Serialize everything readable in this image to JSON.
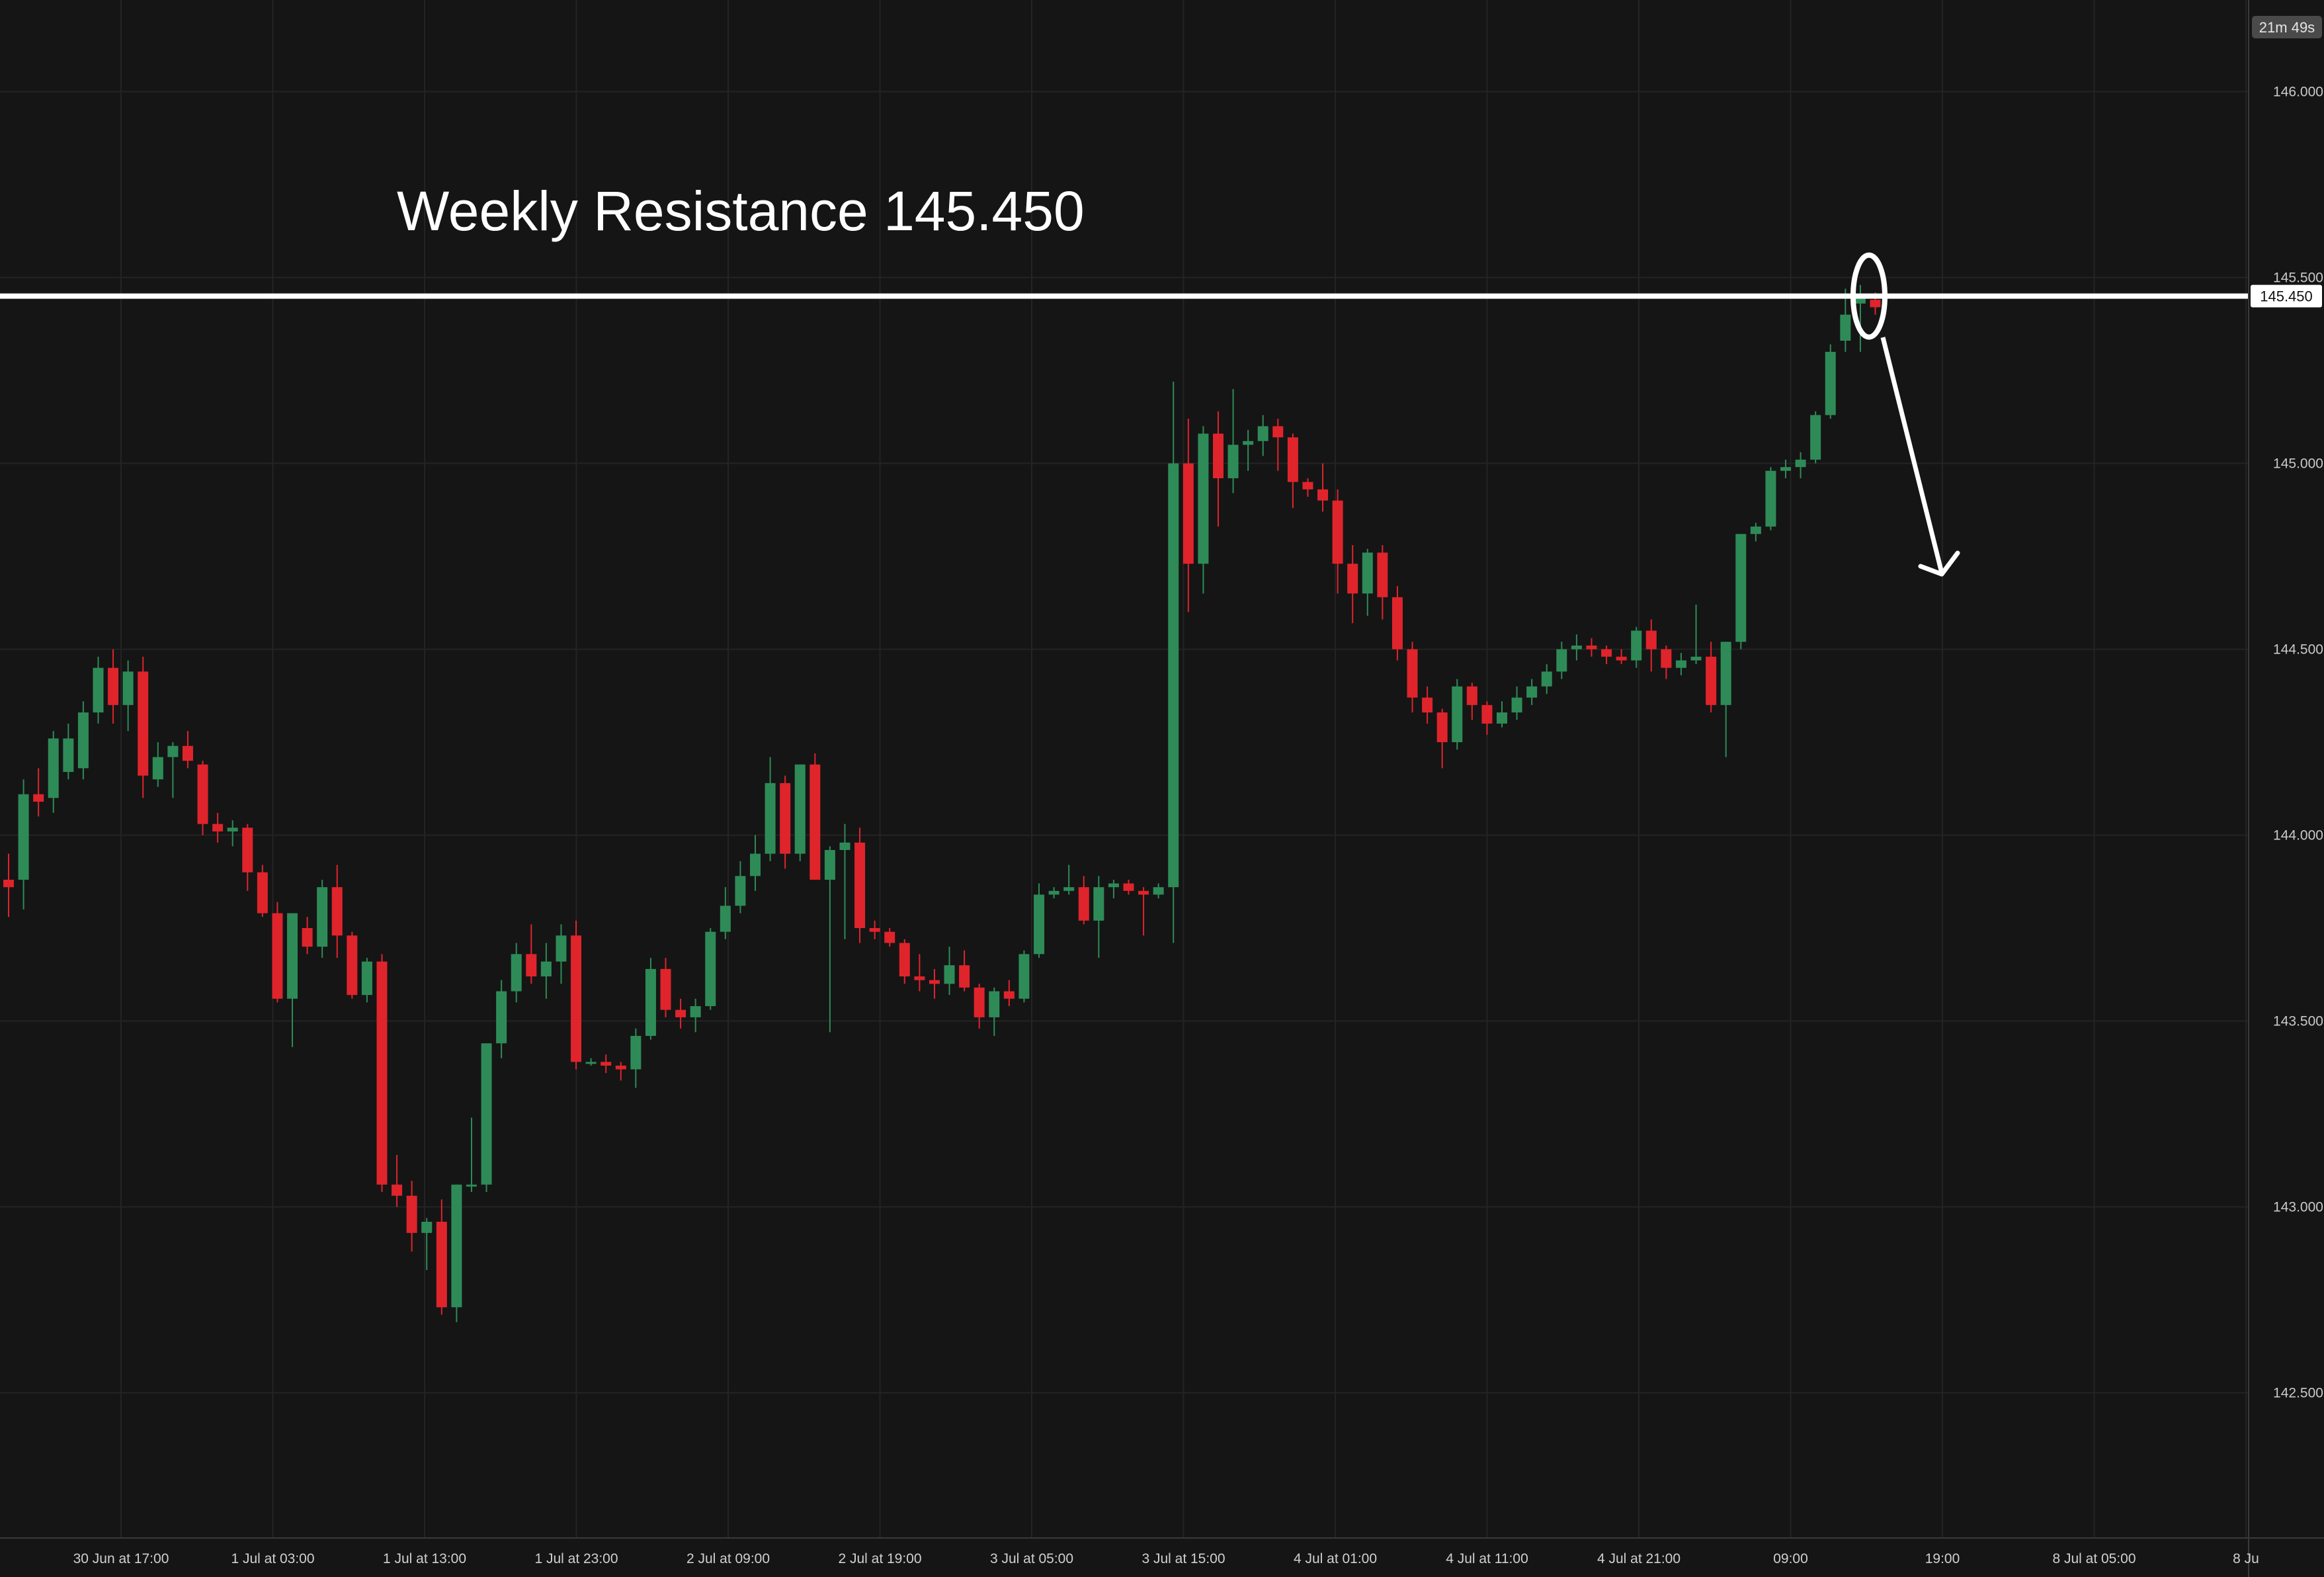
{
  "timer": "21m 49s",
  "colors": {
    "background": "#151515",
    "grid": "#242424",
    "up": "#2e8b57",
    "down": "#e0242c",
    "annotation": "#ffffff",
    "axis_label_bg": "#4a4a4a"
  },
  "chart_data": {
    "type": "candlestick",
    "title": "",
    "xlabel": "",
    "ylabel": "",
    "ylim": [
      142.1,
      146.2
    ],
    "y_ticks": [
      "146.000",
      "145.500",
      "145.000",
      "144.500",
      "144.000",
      "143.500",
      "143.000",
      "142.500"
    ],
    "x_ticks": [
      "30 Jun at 17:00",
      "1 Jul at 03:00",
      "1 Jul at 13:00",
      "1 Jul at 23:00",
      "2 Jul at 09:00",
      "2 Jul at 19:00",
      "3 Jul at 05:00",
      "3 Jul at 15:00",
      "4 Jul at 01:00",
      "4 Jul at 11:00",
      "4 Jul at 21:00",
      "09:00",
      "19:00",
      "8 Jul at 05:00",
      "8 Ju"
    ],
    "grid": true,
    "candle_interval": "1h",
    "first_candle": "30 Jun at 10:00",
    "ohlc": [
      [
        143.88,
        143.95,
        143.78,
        143.86
      ],
      [
        143.88,
        144.15,
        143.8,
        144.11
      ],
      [
        144.11,
        144.18,
        144.05,
        144.09
      ],
      [
        144.1,
        144.28,
        144.06,
        144.26
      ],
      [
        144.17,
        144.3,
        144.15,
        144.26
      ],
      [
        144.18,
        144.36,
        144.15,
        144.33
      ],
      [
        144.33,
        144.48,
        144.3,
        144.45
      ],
      [
        144.45,
        144.5,
        144.3,
        144.35
      ],
      [
        144.35,
        144.47,
        144.28,
        144.44
      ],
      [
        144.44,
        144.48,
        144.1,
        144.16
      ],
      [
        144.15,
        144.25,
        144.13,
        144.21
      ],
      [
        144.21,
        144.25,
        144.1,
        144.24
      ],
      [
        144.24,
        144.28,
        144.18,
        144.2
      ],
      [
        144.19,
        144.2,
        144.0,
        144.03
      ],
      [
        144.03,
        144.06,
        143.98,
        144.01
      ],
      [
        144.01,
        144.04,
        143.97,
        144.02
      ],
      [
        144.02,
        144.03,
        143.85,
        143.9
      ],
      [
        143.9,
        143.92,
        143.78,
        143.79
      ],
      [
        143.79,
        143.82,
        143.55,
        143.56
      ],
      [
        143.56,
        143.78,
        143.43,
        143.79
      ],
      [
        143.75,
        143.78,
        143.68,
        143.7
      ],
      [
        143.7,
        143.88,
        143.67,
        143.86
      ],
      [
        143.86,
        143.92,
        143.67,
        143.73
      ],
      [
        143.73,
        143.74,
        143.56,
        143.57
      ],
      [
        143.57,
        143.67,
        143.55,
        143.66
      ],
      [
        143.66,
        143.68,
        143.04,
        143.06
      ],
      [
        143.06,
        143.14,
        143.0,
        143.03
      ],
      [
        143.03,
        143.07,
        142.88,
        142.93
      ],
      [
        142.93,
        142.97,
        142.83,
        142.96
      ],
      [
        142.96,
        143.02,
        142.71,
        142.73
      ],
      [
        142.73,
        143.06,
        142.69,
        143.06
      ],
      [
        143.06,
        143.24,
        143.04,
        143.06
      ],
      [
        143.06,
        143.44,
        143.04,
        143.44
      ],
      [
        143.44,
        143.61,
        143.4,
        143.58
      ],
      [
        143.58,
        143.71,
        143.55,
        143.68
      ],
      [
        143.68,
        143.76,
        143.6,
        143.62
      ],
      [
        143.62,
        143.71,
        143.56,
        143.66
      ],
      [
        143.66,
        143.76,
        143.6,
        143.73
      ],
      [
        143.73,
        143.77,
        143.37,
        143.39
      ],
      [
        143.39,
        143.4,
        143.38,
        143.39
      ],
      [
        143.39,
        143.41,
        143.36,
        143.38
      ],
      [
        143.38,
        143.39,
        143.34,
        143.37
      ],
      [
        143.37,
        143.48,
        143.32,
        143.46
      ],
      [
        143.46,
        143.67,
        143.45,
        143.64
      ],
      [
        143.64,
        143.67,
        143.51,
        143.53
      ],
      [
        143.53,
        143.56,
        143.48,
        143.51
      ],
      [
        143.51,
        143.56,
        143.47,
        143.54
      ],
      [
        143.54,
        143.75,
        143.53,
        143.74
      ],
      [
        143.74,
        143.86,
        143.72,
        143.81
      ],
      [
        143.81,
        143.93,
        143.79,
        143.89
      ],
      [
        143.89,
        144.0,
        143.85,
        143.95
      ],
      [
        143.95,
        144.21,
        143.93,
        144.14
      ],
      [
        144.14,
        144.16,
        143.91,
        143.95
      ],
      [
        143.95,
        144.19,
        143.93,
        144.19
      ],
      [
        144.19,
        144.22,
        143.88,
        143.88
      ],
      [
        143.88,
        143.97,
        143.47,
        143.96
      ],
      [
        143.96,
        144.03,
        143.72,
        143.98
      ],
      [
        143.98,
        144.02,
        143.71,
        143.75
      ],
      [
        143.75,
        143.77,
        143.72,
        143.74
      ],
      [
        143.74,
        143.75,
        143.7,
        143.71
      ],
      [
        143.71,
        143.72,
        143.6,
        143.62
      ],
      [
        143.62,
        143.68,
        143.58,
        143.61
      ],
      [
        143.61,
        143.64,
        143.56,
        143.6
      ],
      [
        143.6,
        143.7,
        143.57,
        143.65
      ],
      [
        143.65,
        143.69,
        143.58,
        143.59
      ],
      [
        143.59,
        143.6,
        143.48,
        143.51
      ],
      [
        143.51,
        143.59,
        143.46,
        143.58
      ],
      [
        143.58,
        143.61,
        143.54,
        143.56
      ],
      [
        143.56,
        143.69,
        143.55,
        143.68
      ],
      [
        143.68,
        143.87,
        143.67,
        143.84
      ],
      [
        143.84,
        143.86,
        143.83,
        143.85
      ],
      [
        143.85,
        143.92,
        143.84,
        143.86
      ],
      [
        143.86,
        143.89,
        143.76,
        143.77
      ],
      [
        143.77,
        143.89,
        143.67,
        143.86
      ],
      [
        143.86,
        143.88,
        143.83,
        143.87
      ],
      [
        143.87,
        143.88,
        143.84,
        143.85
      ],
      [
        143.85,
        143.86,
        143.73,
        143.84
      ],
      [
        143.84,
        143.87,
        143.83,
        143.86
      ],
      [
        143.86,
        145.22,
        143.71,
        145.0
      ],
      [
        145.0,
        145.12,
        144.6,
        144.73
      ],
      [
        144.73,
        145.1,
        144.65,
        145.08
      ],
      [
        145.08,
        145.14,
        144.83,
        144.96
      ],
      [
        144.96,
        145.2,
        144.92,
        145.05
      ],
      [
        145.05,
        145.09,
        144.98,
        145.06
      ],
      [
        145.06,
        145.13,
        145.02,
        145.1
      ],
      [
        145.1,
        145.12,
        144.98,
        145.07
      ],
      [
        145.07,
        145.08,
        144.88,
        144.95
      ],
      [
        144.95,
        144.96,
        144.91,
        144.93
      ],
      [
        144.93,
        145.0,
        144.87,
        144.9
      ],
      [
        144.9,
        144.93,
        144.65,
        144.73
      ],
      [
        144.73,
        144.78,
        144.57,
        144.65
      ],
      [
        144.65,
        144.77,
        144.59,
        144.76
      ],
      [
        144.76,
        144.78,
        144.58,
        144.64
      ],
      [
        144.64,
        144.67,
        144.47,
        144.5
      ],
      [
        144.5,
        144.52,
        144.33,
        144.37
      ],
      [
        144.37,
        144.4,
        144.3,
        144.33
      ],
      [
        144.33,
        144.34,
        144.18,
        144.25
      ],
      [
        144.25,
        144.42,
        144.23,
        144.4
      ],
      [
        144.4,
        144.41,
        144.31,
        144.35
      ],
      [
        144.35,
        144.36,
        144.27,
        144.3
      ],
      [
        144.3,
        144.36,
        144.29,
        144.33
      ],
      [
        144.33,
        144.4,
        144.31,
        144.37
      ],
      [
        144.37,
        144.42,
        144.35,
        144.4
      ],
      [
        144.4,
        144.46,
        144.38,
        144.44
      ],
      [
        144.44,
        144.52,
        144.42,
        144.5
      ],
      [
        144.5,
        144.54,
        144.47,
        144.51
      ],
      [
        144.51,
        144.53,
        144.48,
        144.5
      ],
      [
        144.5,
        144.51,
        144.46,
        144.48
      ],
      [
        144.48,
        144.5,
        144.46,
        144.47
      ],
      [
        144.47,
        144.56,
        144.45,
        144.55
      ],
      [
        144.55,
        144.58,
        144.44,
        144.5
      ],
      [
        144.5,
        144.51,
        144.42,
        144.45
      ],
      [
        144.45,
        144.49,
        144.43,
        144.47
      ],
      [
        144.47,
        144.62,
        144.46,
        144.48
      ],
      [
        144.48,
        144.52,
        144.33,
        144.35
      ],
      [
        144.35,
        144.52,
        144.21,
        144.52
      ],
      [
        144.52,
        144.81,
        144.5,
        144.81
      ],
      [
        144.81,
        144.84,
        144.79,
        144.83
      ],
      [
        144.83,
        144.99,
        144.82,
        144.98
      ],
      [
        144.98,
        145.01,
        144.96,
        144.99
      ],
      [
        144.99,
        145.03,
        144.96,
        145.01
      ],
      [
        145.01,
        145.14,
        145.0,
        145.13
      ],
      [
        145.13,
        145.32,
        145.12,
        145.3
      ],
      [
        145.33,
        145.47,
        145.3,
        145.4
      ],
      [
        145.43,
        145.48,
        145.3,
        145.45
      ],
      [
        145.44,
        145.46,
        145.4,
        145.42
      ]
    ],
    "annotations": {
      "resistance_label": "Weekly Resistance 145.450",
      "resistance_level": 145.45,
      "resistance_price_label": "145.450",
      "circle_at_price": 145.45,
      "arrow": "down"
    }
  }
}
